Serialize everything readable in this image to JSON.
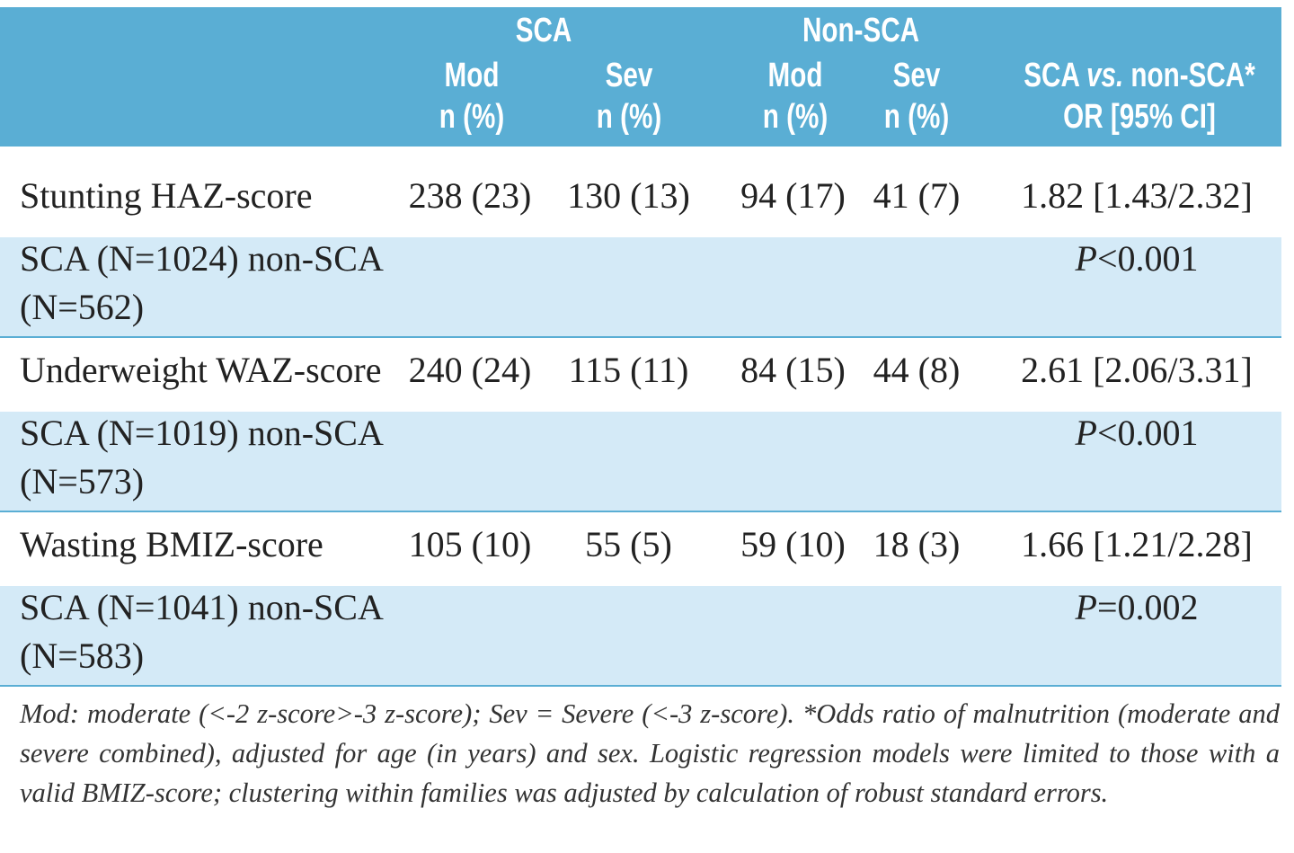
{
  "header": {
    "group_sca": "SCA",
    "group_nonsca": "Non-SCA",
    "mod": "Mod",
    "sev": "Sev",
    "n_pct": "n (%)",
    "or_title": "SCA vs. non-SCA*",
    "or_title_pre": "SCA ",
    "or_title_vs": "vs.",
    "or_title_post": " non-SCA*",
    "or_sub": "OR [95% CI]"
  },
  "rows": [
    {
      "label": "Stunting HAZ-score",
      "sca_mod": "238 (23)",
      "sca_sev": "130 (13)",
      "non_mod": "94 (17)",
      "non_sev": "41 (7)",
      "or": "1.82 [1.43/2.32]",
      "sub_label_1": "SCA (N=1024) non-SCA",
      "sub_label_2": "(N=562)",
      "p_letter": "P",
      "p_rest": "<0.001"
    },
    {
      "label": "Underweight WAZ-score",
      "sca_mod": "240 (24)",
      "sca_sev": "115 (11)",
      "non_mod": "84 (15)",
      "non_sev": "44 (8)",
      "or": "2.61 [2.06/3.31]",
      "sub_label_1": "SCA (N=1019) non-SCA",
      "sub_label_2": "(N=573)",
      "p_letter": "P",
      "p_rest": "<0.001"
    },
    {
      "label": "Wasting BMIZ-score",
      "sca_mod": "105 (10)",
      "sca_sev": "55 (5)",
      "non_mod": "59 (10)",
      "non_sev": "18 (3)",
      "or": "1.66 [1.21/2.28]",
      "sub_label_1": "SCA (N=1041) non-SCA",
      "sub_label_2": "(N=583)",
      "p_letter": "P",
      "p_rest": "=0.002"
    }
  ],
  "footnote": "Mod: moderate (<-2 z-score>-3 z-score); Sev = Severe (<-3 z-score). *Odds ratio of malnutrition (moderate and severe combined), adjusted for age (in years) and sex. Logistic regression models were limited to those with a valid BMIZ-score; clustering within families was adjusted by calculation of robust standard errors.",
  "colors": {
    "header_bg": "#5aaed4",
    "band_bg": "#d4eaf7",
    "text": "#222222"
  }
}
